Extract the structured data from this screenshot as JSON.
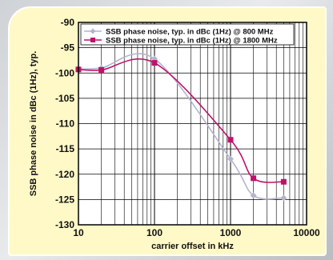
{
  "chart_data": {
    "type": "line",
    "xlabel": "carrier offset in kHz",
    "ylabel": "SSB phase noise in dBc (1Hz), typ.",
    "xscale": "log",
    "xlim": [
      10,
      10000
    ],
    "ylim": [
      -130,
      -90
    ],
    "x_ticks": [
      10,
      100,
      1000,
      10000
    ],
    "x_tick_labels": [
      "10",
      "100",
      "1000",
      "10000"
    ],
    "y_ticks": [
      -90,
      -95,
      -100,
      -105,
      -110,
      -115,
      -120,
      -125,
      -130
    ],
    "y_tick_labels": [
      "-90",
      "-95",
      "-100",
      "-105",
      "-110",
      "-115",
      "-120",
      "-125",
      "-130"
    ],
    "grid": true,
    "legend_position": "top-right",
    "series": [
      {
        "name": "SSB phase noise, typ. in dBc (1Hz) @ 800 MHz",
        "color": "#b4b4cf",
        "marker": "diamond",
        "x": [
          10,
          20,
          100,
          1000,
          2000,
          5000
        ],
        "y": [
          -99.2,
          -99.0,
          -97.2,
          -117.0,
          -124.2,
          -124.7
        ]
      },
      {
        "name": "SSB phase noise, typ. in dBc (1Hz) @ 1800 MHz",
        "color": "#c0116a",
        "marker": "square",
        "x": [
          10,
          20,
          100,
          1000,
          2000,
          5000
        ],
        "y": [
          -99.3,
          -99.4,
          -98.0,
          -113.2,
          -120.8,
          -121.5
        ]
      }
    ]
  }
}
